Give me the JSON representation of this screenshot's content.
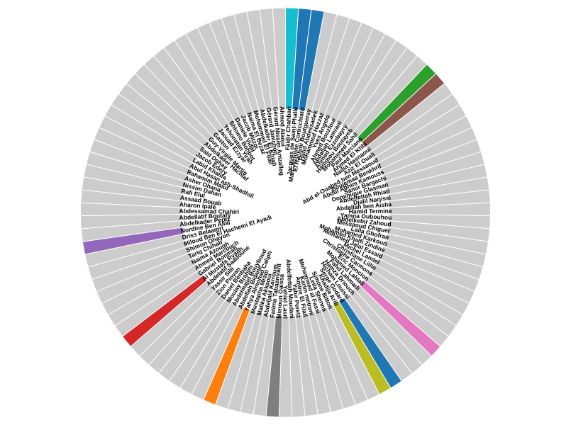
{
  "chart_data": {
    "type": "pie",
    "subtype": "donut",
    "title": "",
    "default_color": "#cccccc",
    "categories": [
      "Faidir Chahbari",
      "Jacques de Saint-Phalle",
      "Marc-Antoine Corticchiato",
      "El Hachmi Boutgueray",
      "Hafid Abdessadek",
      "Mohammed Hazzaz",
      "Yves Angelo",
      "Ahmed Bouzfour",
      "Abdallah Lamrani",
      "Ahmed Ezzobayry",
      "Hammou Boutayeb",
      "Mohammed Sahil",
      "Paul Marciano",
      "Ahmed El Ktibi",
      "Nadia Hasnaoui",
      "Aziz El Ouali",
      "Abd el-Ouahed ben Messaoud",
      "Boujemaa Benkhrif",
      "Abdul Adhim Kamouss",
      "Samir Bargachi",
      "Dominique Glasman",
      "Abdelfettah Rhiati",
      "Djalil Narjissi",
      "Abdallah ben Aisha",
      "Hamid Termina",
      "Yamna Oubouhou",
      "Abdelkebir Zahoud",
      "Messaoud Chiguer",
      "Laila Ghofran",
      "Mohamed Karkouri",
      "Mohamed Khalfi Zindine",
      "Mohamed Jalal Essaid",
      "Michel Landel",
      "Christiane Lillio",
      "Christophe Carmona",
      "Eric Monclon",
      "Mohamed Lahlali",
      "Fahd Lahmadi",
      "Hamza Driouch",
      "Hicham Louissi",
      "Serge Godard",
      "Khadija Arib",
      "Simone Bitton",
      "Leila Shenna",
      "Mohammed al Fassi",
      "Karim metrani",
      "Amine El Filali",
      "Yahir Peretz",
      "Abdelfettah Moudani",
      "Yehiel Lasri",
      "Mimoun Oaissa",
      "Fatima Tabaamrant",
      "Abdeljalil Karroum",
      "Malika Akkaoui",
      "Mustapha Mrani",
      "Yahya Almohad Caliph",
      "Abdellah Bidane",
      "Abdelmajid Bouyboud",
      "Moulay Brahim",
      "Daniel Benbaha",
      "Zion Pinyan",
      "Yassir Silli",
      "Abdelatif Saadoune",
      "Al Mustafa Ryadh",
      "Gabriel Bonmati",
      "Ahmed Marcouch",
      "Naima Azough",
      "Tariq Chihab",
      "Shimon Ohayon",
      "Miloud Ben El Hachemi El Ayadi",
      "Driss Belaamri",
      "Nordine Ben Allal",
      "Abdelkader Perez",
      "Abdellatif Boutaty",
      "Abdessamad Chahiri",
      "Aharon Ipalé",
      "Assaad Bouab",
      "Rafi Elul",
      "Nissim Dahan",
      "Asher Ohana",
      "Rahamim Maluf",
      "Abul Hasan ash-Shadhili",
      "Labid Khalifa",
      "Jacob Edery",
      "Saïd Dghay",
      "Abdelkader Hachlaf",
      "Guy-Virgile Martin",
      "Gaston",
      "Jaouad Ezzyar",
      "Yehonatan Yirah",
      "Shlomo Bohbot",
      "Daniele Vidal",
      "Jacob Mitzgi",
      "Naima El Bezaz",
      "Mohammed El Filali",
      "Abdelkader El Khiati",
      "Gérard Janichon",
      "Gérard Nissim Amzallag",
      "Ahmed Alaoui"
    ],
    "values": [
      1,
      1,
      1,
      1,
      1,
      1,
      1,
      1,
      1,
      1,
      1,
      1,
      1,
      1,
      1,
      1,
      1,
      1,
      1,
      1,
      1,
      1,
      1,
      1,
      1,
      1,
      1,
      1,
      1,
      1,
      1,
      1,
      1,
      1,
      1,
      1,
      1,
      1,
      1,
      1,
      1,
      1,
      1,
      1,
      1,
      1,
      1,
      1,
      1,
      1,
      1,
      1,
      1,
      1,
      1,
      1,
      1,
      1,
      1,
      1,
      1,
      1,
      1,
      1,
      1,
      1,
      1,
      1,
      1,
      1,
      1,
      1,
      1,
      1,
      1,
      1,
      1,
      1,
      1,
      1,
      1,
      1,
      1,
      1,
      1,
      1,
      1,
      1,
      1,
      1,
      1,
      1,
      1,
      1,
      1,
      1,
      1,
      1,
      1
    ],
    "highlight_colors": {
      "Faidir Chahbari": "#17becf",
      "Jacques de Saint-Phalle": "#1f77b4",
      "Marc-Antoine Corticchiato": "#1f77b4",
      "Paul Marciano": "#2ca02c",
      "Ahmed El Ktibi": "#8c564b",
      "Mohamed Lahlali": "#e377c2",
      "Serge Godard": "#1f77b4",
      "Khadija Arib": "#bcbd22",
      "Mimoun Oaissa": "#7f7f7f",
      "Yahya Almohad Caliph": "#ff7f0e",
      "Al Mustafa Ryadh": "#d62728",
      "Nordine Ben Allal": "#9467bd"
    },
    "start": "top",
    "direction": "clockwise",
    "legend": "none"
  }
}
